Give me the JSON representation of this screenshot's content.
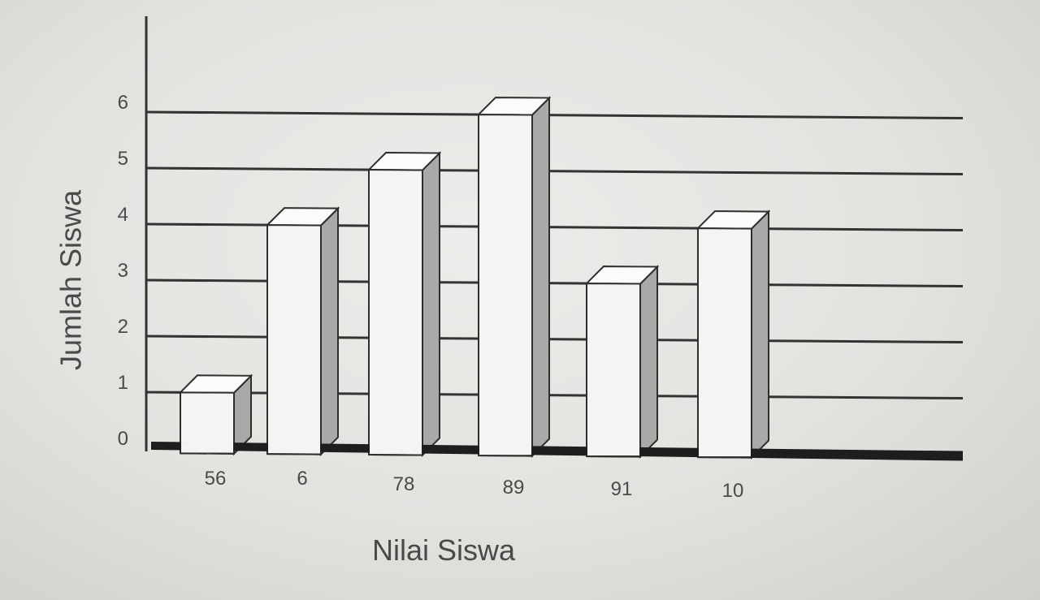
{
  "chart_data": {
    "type": "bar",
    "categories": [
      "56",
      "6",
      "78",
      "89",
      "91",
      "10"
    ],
    "values": [
      1,
      4,
      5,
      6,
      3,
      4
    ],
    "xlabel": "Nilai Siswa",
    "ylabel": "Jumlah Siswa",
    "ylim": [
      0,
      6
    ],
    "yticks": [
      "0",
      "1",
      "2",
      "3",
      "4",
      "5",
      "6"
    ],
    "grid": true,
    "style": "3d"
  },
  "colors": {
    "bar_front": "#f4f4f2",
    "bar_top": "#fbfbf9",
    "bar_side": "#a9a9a7",
    "outline": "#2e2e2e",
    "gridline": "#333333",
    "baseline": "#1e1e1e"
  }
}
